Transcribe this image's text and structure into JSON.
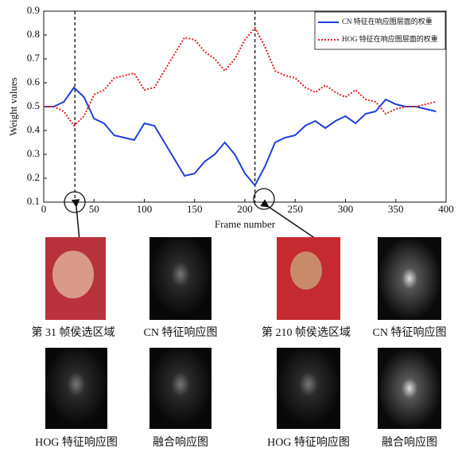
{
  "chart_data": {
    "type": "line",
    "x_label": "Frame number",
    "y_label": "Weight values",
    "x": [
      0,
      10,
      20,
      30,
      40,
      50,
      60,
      70,
      80,
      90,
      100,
      110,
      120,
      130,
      140,
      150,
      160,
      170,
      180,
      190,
      200,
      210,
      220,
      230,
      240,
      250,
      260,
      270,
      280,
      290,
      300,
      310,
      320,
      330,
      340,
      350,
      360,
      370,
      380,
      390
    ],
    "series": [
      {
        "name": "CN 特征在响应图层面的权重",
        "color": "#1f3fd6",
        "style": "solid",
        "values": [
          0.5,
          0.5,
          0.52,
          0.58,
          0.54,
          0.45,
          0.43,
          0.38,
          0.37,
          0.36,
          0.43,
          0.42,
          0.35,
          0.28,
          0.21,
          0.22,
          0.27,
          0.3,
          0.35,
          0.3,
          0.22,
          0.17,
          0.25,
          0.35,
          0.37,
          0.38,
          0.42,
          0.44,
          0.41,
          0.44,
          0.46,
          0.43,
          0.47,
          0.48,
          0.53,
          0.51,
          0.5,
          0.5,
          0.49,
          0.48
        ]
      },
      {
        "name": "HOG 特征在响应图层面的权重",
        "color": "#e02020",
        "style": "dotted",
        "values": [
          0.5,
          0.5,
          0.48,
          0.42,
          0.46,
          0.55,
          0.57,
          0.62,
          0.63,
          0.64,
          0.57,
          0.58,
          0.65,
          0.72,
          0.79,
          0.78,
          0.73,
          0.7,
          0.65,
          0.7,
          0.78,
          0.83,
          0.75,
          0.65,
          0.63,
          0.62,
          0.58,
          0.56,
          0.59,
          0.56,
          0.54,
          0.57,
          0.53,
          0.52,
          0.47,
          0.49,
          0.5,
          0.5,
          0.51,
          0.52
        ]
      }
    ],
    "marked_frames": [
      31,
      210
    ],
    "xlim": [
      0,
      400
    ],
    "xticks": [
      0,
      50,
      100,
      150,
      200,
      250,
      300,
      350,
      400
    ],
    "ylim": [
      0.1,
      0.9
    ],
    "yticks": [
      0.1,
      0.2,
      0.3,
      0.4,
      0.5,
      0.6,
      0.7,
      0.8,
      0.9
    ],
    "legend": "upper right"
  },
  "panels": [
    {
      "caption": "第 31 帧侯选区域"
    },
    {
      "caption": "CN 特征响应图"
    },
    {
      "caption": "第 210 帧侯选区域"
    },
    {
      "caption": "CN 特征响应图"
    },
    {
      "caption": "HOG 特征响应图"
    },
    {
      "caption": "融合响应图"
    },
    {
      "caption": "HOG 特征响应图"
    },
    {
      "caption": "融合响应图"
    }
  ]
}
